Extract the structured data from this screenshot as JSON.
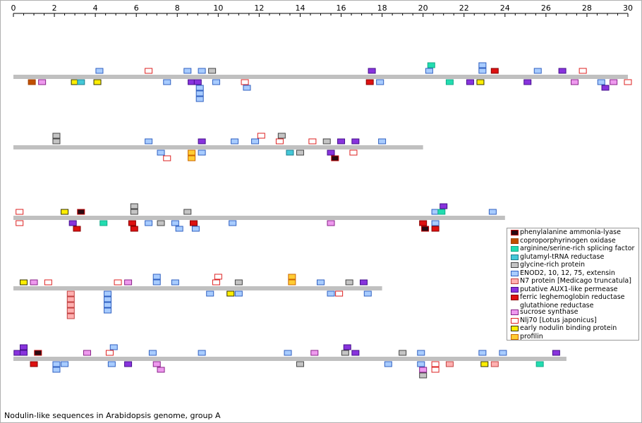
{
  "caption": "Nodulin-like sequences in Arabidopsis genome, group A",
  "chart_data": {
    "type": "scatter",
    "x_axis": {
      "min": 0,
      "max": 30,
      "ticks": [
        0,
        2,
        4,
        6,
        8,
        10,
        12,
        14,
        16,
        18,
        20,
        22,
        24,
        26,
        28,
        30
      ]
    },
    "categories": [
      {
        "key": "pal",
        "name": "phenylalanine ammonia-lyase",
        "fill": "#2a0a12",
        "stroke": "#c00000"
      },
      {
        "key": "copr",
        "name": "coproporphyrinogen oxidase",
        "fill": "#c05000",
        "stroke": "#a04000"
      },
      {
        "key": "arg",
        "name": "arginine/serine-rich splicing factor",
        "fill": "#22ddb0",
        "stroke": "#11aa88"
      },
      {
        "key": "glut",
        "name": "glutamyl-tRNA reductase",
        "fill": "#44c8d8",
        "stroke": "#1c7c8c"
      },
      {
        "key": "gly",
        "name": "glycine-rich protein",
        "fill": "#c4c4c4",
        "stroke": "#444444"
      },
      {
        "key": "enod",
        "name": "ENOD2, 10, 12, 75, extensin",
        "fill": "#a8ccff",
        "stroke": "#3060c0"
      },
      {
        "key": "n7",
        "name": "N7 protein [Medicago truncatula]",
        "fill": "#ffb0b0",
        "stroke": "#c04040"
      },
      {
        "key": "aux",
        "name": "putative AUX1-like permease",
        "fill": "#8833dd",
        "stroke": "#44108a"
      },
      {
        "key": "fer",
        "name": "ferric leghemoglobin reductase",
        "name2": "glutathione reductase",
        "fill": "#dd1111",
        "stroke": "#880000"
      },
      {
        "key": "sucr",
        "name": "sucrose synthase",
        "fill": "#ee99ee",
        "stroke": "#882288"
      },
      {
        "key": "nlj",
        "name": "Nlj70 [Lotus japonicus]",
        "fill": "#ffffff",
        "stroke": "#dd2222"
      },
      {
        "key": "enbp",
        "name": "early nodulin binding protein",
        "fill": "#ffee00",
        "stroke": "#333300"
      },
      {
        "key": "prof",
        "name": "profilin",
        "fill": "#ffcc33",
        "stroke": "#cc6600"
      }
    ],
    "chromosomes": [
      {
        "length": 30,
        "features": [
          {
            "x": 4.2,
            "level": 1,
            "cat": "enod"
          },
          {
            "x": 6.6,
            "level": 1,
            "cat": "nlj"
          },
          {
            "x": 8.5,
            "level": 1,
            "cat": "enod"
          },
          {
            "x": 9.2,
            "level": 1,
            "cat": "enod"
          },
          {
            "x": 9.7,
            "level": 1,
            "cat": "gly"
          },
          {
            "x": 17.5,
            "level": 1,
            "cat": "aux"
          },
          {
            "x": 20.3,
            "level": 1,
            "cat": "enod"
          },
          {
            "x": 20.4,
            "level": 2,
            "cat": "arg"
          },
          {
            "x": 22.9,
            "level": 1,
            "cat": "enod"
          },
          {
            "x": 22.9,
            "level": 2,
            "cat": "enod"
          },
          {
            "x": 23.5,
            "level": 1,
            "cat": "fer"
          },
          {
            "x": 25.6,
            "level": 1,
            "cat": "enod"
          },
          {
            "x": 26.8,
            "level": 1,
            "cat": "aux"
          },
          {
            "x": 27.8,
            "level": 1,
            "cat": "nlj"
          },
          {
            "x": 0.9,
            "level": -1,
            "cat": "copr"
          },
          {
            "x": 1.4,
            "level": -1,
            "cat": "sucr"
          },
          {
            "x": 3.0,
            "level": -1,
            "cat": "enbp"
          },
          {
            "x": 3.3,
            "level": -1,
            "cat": "glut"
          },
          {
            "x": 4.1,
            "level": -1,
            "cat": "enbp"
          },
          {
            "x": 7.5,
            "level": -1,
            "cat": "enod"
          },
          {
            "x": 8.7,
            "level": -1,
            "cat": "aux"
          },
          {
            "x": 9.0,
            "level": -1,
            "cat": "aux"
          },
          {
            "x": 9.1,
            "level": -2,
            "cat": "enod"
          },
          {
            "x": 9.1,
            "level": -3,
            "cat": "enod"
          },
          {
            "x": 9.1,
            "level": -4,
            "cat": "enod"
          },
          {
            "x": 9.9,
            "level": -1,
            "cat": "enod"
          },
          {
            "x": 11.3,
            "level": -1,
            "cat": "nlj"
          },
          {
            "x": 11.4,
            "level": -2,
            "cat": "enod"
          },
          {
            "x": 17.4,
            "level": -1,
            "cat": "fer"
          },
          {
            "x": 17.9,
            "level": -1,
            "cat": "enod"
          },
          {
            "x": 21.3,
            "level": -1,
            "cat": "arg"
          },
          {
            "x": 22.3,
            "level": -1,
            "cat": "aux"
          },
          {
            "x": 22.8,
            "level": -1,
            "cat": "enbp"
          },
          {
            "x": 25.1,
            "level": -1,
            "cat": "aux"
          },
          {
            "x": 27.4,
            "level": -1,
            "cat": "sucr"
          },
          {
            "x": 28.7,
            "level": -1,
            "cat": "enod"
          },
          {
            "x": 28.9,
            "level": -2,
            "cat": "aux"
          },
          {
            "x": 29.3,
            "level": -1,
            "cat": "sucr"
          },
          {
            "x": 30.0,
            "level": -1,
            "cat": "nlj"
          }
        ]
      },
      {
        "length": 20,
        "features": [
          {
            "x": 2.1,
            "level": 1,
            "cat": "gly"
          },
          {
            "x": 2.1,
            "level": 2,
            "cat": "gly"
          },
          {
            "x": 6.6,
            "level": 1,
            "cat": "enod"
          },
          {
            "x": 9.2,
            "level": 1,
            "cat": "aux"
          },
          {
            "x": 10.8,
            "level": 1,
            "cat": "enod"
          },
          {
            "x": 11.8,
            "level": 1,
            "cat": "enod"
          },
          {
            "x": 12.1,
            "level": 2,
            "cat": "nlj"
          },
          {
            "x": 13.0,
            "level": 1,
            "cat": "nlj"
          },
          {
            "x": 13.1,
            "level": 2,
            "cat": "gly"
          },
          {
            "x": 14.6,
            "level": 1,
            "cat": "nlj"
          },
          {
            "x": 15.3,
            "level": 1,
            "cat": "gly"
          },
          {
            "x": 16.0,
            "level": 1,
            "cat": "aux"
          },
          {
            "x": 16.7,
            "level": 1,
            "cat": "aux"
          },
          {
            "x": 18.0,
            "level": 1,
            "cat": "enod"
          },
          {
            "x": 7.2,
            "level": -1,
            "cat": "enod"
          },
          {
            "x": 7.5,
            "level": -2,
            "cat": "nlj"
          },
          {
            "x": 8.7,
            "level": -1,
            "cat": "prof"
          },
          {
            "x": 8.7,
            "level": -2,
            "cat": "prof"
          },
          {
            "x": 9.2,
            "level": -1,
            "cat": "enod"
          },
          {
            "x": 13.5,
            "level": -1,
            "cat": "glut"
          },
          {
            "x": 14.0,
            "level": -1,
            "cat": "gly"
          },
          {
            "x": 15.5,
            "level": -1,
            "cat": "aux"
          },
          {
            "x": 15.7,
            "level": -2,
            "cat": "pal"
          },
          {
            "x": 16.6,
            "level": -1,
            "cat": "nlj"
          }
        ]
      },
      {
        "length": 24,
        "features": [
          {
            "x": 0.3,
            "level": 1,
            "cat": "nlj"
          },
          {
            "x": 2.5,
            "level": 1,
            "cat": "enbp"
          },
          {
            "x": 3.3,
            "level": 1,
            "cat": "pal"
          },
          {
            "x": 5.9,
            "level": 1,
            "cat": "gly"
          },
          {
            "x": 5.9,
            "level": 2,
            "cat": "gly"
          },
          {
            "x": 8.5,
            "level": 1,
            "cat": "gly"
          },
          {
            "x": 20.6,
            "level": 1,
            "cat": "enod"
          },
          {
            "x": 20.9,
            "level": 1,
            "cat": "arg"
          },
          {
            "x": 21.0,
            "level": 2,
            "cat": "aux"
          },
          {
            "x": 23.4,
            "level": 1,
            "cat": "enod"
          },
          {
            "x": 0.3,
            "level": -1,
            "cat": "nlj"
          },
          {
            "x": 2.9,
            "level": -1,
            "cat": "aux"
          },
          {
            "x": 3.1,
            "level": -2,
            "cat": "fer"
          },
          {
            "x": 4.4,
            "level": -1,
            "cat": "arg"
          },
          {
            "x": 5.8,
            "level": -1,
            "cat": "fer"
          },
          {
            "x": 5.9,
            "level": -2,
            "cat": "fer"
          },
          {
            "x": 6.6,
            "level": -1,
            "cat": "enod"
          },
          {
            "x": 7.2,
            "level": -1,
            "cat": "gly"
          },
          {
            "x": 7.9,
            "level": -1,
            "cat": "enod"
          },
          {
            "x": 8.1,
            "level": -2,
            "cat": "enod"
          },
          {
            "x": 8.8,
            "level": -1,
            "cat": "fer"
          },
          {
            "x": 8.9,
            "level": -2,
            "cat": "enod"
          },
          {
            "x": 10.7,
            "level": -1,
            "cat": "enod"
          },
          {
            "x": 15.5,
            "level": -1,
            "cat": "sucr"
          },
          {
            "x": 20.0,
            "level": -1,
            "cat": "fer"
          },
          {
            "x": 20.1,
            "level": -2,
            "cat": "pal"
          },
          {
            "x": 20.6,
            "level": -1,
            "cat": "enod"
          },
          {
            "x": 20.6,
            "level": -2,
            "cat": "fer"
          }
        ]
      },
      {
        "length": 18,
        "features": [
          {
            "x": 0.5,
            "level": 1,
            "cat": "enbp"
          },
          {
            "x": 1.0,
            "level": 1,
            "cat": "sucr"
          },
          {
            "x": 1.7,
            "level": 1,
            "cat": "nlj"
          },
          {
            "x": 5.1,
            "level": 1,
            "cat": "nlj"
          },
          {
            "x": 5.6,
            "level": 1,
            "cat": "sucr"
          },
          {
            "x": 7.0,
            "level": 1,
            "cat": "enod"
          },
          {
            "x": 7.0,
            "level": 2,
            "cat": "enod"
          },
          {
            "x": 7.9,
            "level": 1,
            "cat": "enod"
          },
          {
            "x": 9.9,
            "level": 1,
            "cat": "nlj"
          },
          {
            "x": 10.0,
            "level": 2,
            "cat": "nlj"
          },
          {
            "x": 11.0,
            "level": 1,
            "cat": "gly"
          },
          {
            "x": 13.6,
            "level": 1,
            "cat": "prof"
          },
          {
            "x": 13.6,
            "level": 2,
            "cat": "prof"
          },
          {
            "x": 15.0,
            "level": 1,
            "cat": "enod"
          },
          {
            "x": 16.4,
            "level": 1,
            "cat": "gly"
          },
          {
            "x": 17.1,
            "level": 1,
            "cat": "aux"
          },
          {
            "x": 2.8,
            "level": -1,
            "cat": "n7"
          },
          {
            "x": 2.8,
            "level": -2,
            "cat": "n7"
          },
          {
            "x": 2.8,
            "level": -3,
            "cat": "n7"
          },
          {
            "x": 2.8,
            "level": -4,
            "cat": "n7"
          },
          {
            "x": 2.8,
            "level": -5,
            "cat": "n7"
          },
          {
            "x": 4.6,
            "level": -1,
            "cat": "enod"
          },
          {
            "x": 4.6,
            "level": -2,
            "cat": "enod"
          },
          {
            "x": 4.6,
            "level": -3,
            "cat": "enod"
          },
          {
            "x": 4.6,
            "level": -4,
            "cat": "enod"
          },
          {
            "x": 9.6,
            "level": -1,
            "cat": "enod"
          },
          {
            "x": 10.6,
            "level": -1,
            "cat": "enbp"
          },
          {
            "x": 11.0,
            "level": -1,
            "cat": "enod"
          },
          {
            "x": 15.5,
            "level": -1,
            "cat": "enod"
          },
          {
            "x": 15.9,
            "level": -1,
            "cat": "nlj"
          },
          {
            "x": 17.3,
            "level": -1,
            "cat": "enod"
          }
        ]
      },
      {
        "length": 27,
        "features": [
          {
            "x": 0.2,
            "level": 1,
            "cat": "aux"
          },
          {
            "x": 0.5,
            "level": 1,
            "cat": "aux"
          },
          {
            "x": 0.5,
            "level": 2,
            "cat": "aux"
          },
          {
            "x": 1.2,
            "level": 1,
            "cat": "pal"
          },
          {
            "x": 3.6,
            "level": 1,
            "cat": "sucr"
          },
          {
            "x": 4.7,
            "level": 1,
            "cat": "nlj"
          },
          {
            "x": 4.9,
            "level": 2,
            "cat": "enod"
          },
          {
            "x": 6.8,
            "level": 1,
            "cat": "enod"
          },
          {
            "x": 9.2,
            "level": 1,
            "cat": "enod"
          },
          {
            "x": 13.4,
            "level": 1,
            "cat": "enod"
          },
          {
            "x": 14.7,
            "level": 1,
            "cat": "sucr"
          },
          {
            "x": 16.2,
            "level": 1,
            "cat": "gly"
          },
          {
            "x": 16.3,
            "level": 2,
            "cat": "aux"
          },
          {
            "x": 16.7,
            "level": 1,
            "cat": "aux"
          },
          {
            "x": 19.0,
            "level": 1,
            "cat": "gly"
          },
          {
            "x": 19.9,
            "level": 1,
            "cat": "enod"
          },
          {
            "x": 22.9,
            "level": 1,
            "cat": "enod"
          },
          {
            "x": 23.9,
            "level": 1,
            "cat": "enod"
          },
          {
            "x": 26.5,
            "level": 1,
            "cat": "aux"
          },
          {
            "x": 1.0,
            "level": -1,
            "cat": "fer"
          },
          {
            "x": 2.1,
            "level": -1,
            "cat": "enod"
          },
          {
            "x": 2.1,
            "level": -2,
            "cat": "enod"
          },
          {
            "x": 2.5,
            "level": -1,
            "cat": "enod"
          },
          {
            "x": 4.8,
            "level": -1,
            "cat": "enod"
          },
          {
            "x": 5.6,
            "level": -1,
            "cat": "aux"
          },
          {
            "x": 7.0,
            "level": -1,
            "cat": "sucr"
          },
          {
            "x": 7.2,
            "level": -2,
            "cat": "sucr"
          },
          {
            "x": 14.0,
            "level": -1,
            "cat": "gly"
          },
          {
            "x": 18.3,
            "level": -1,
            "cat": "enod"
          },
          {
            "x": 19.9,
            "level": -1,
            "cat": "enod"
          },
          {
            "x": 20.0,
            "level": -2,
            "cat": "sucr"
          },
          {
            "x": 20.0,
            "level": -3,
            "cat": "gly"
          },
          {
            "x": 20.6,
            "level": -1,
            "cat": "nlj"
          },
          {
            "x": 20.6,
            "level": -2,
            "cat": "nlj"
          },
          {
            "x": 21.3,
            "level": -1,
            "cat": "n7"
          },
          {
            "x": 23.0,
            "level": -1,
            "cat": "enbp"
          },
          {
            "x": 23.5,
            "level": -1,
            "cat": "n7"
          },
          {
            "x": 25.7,
            "level": -1,
            "cat": "arg"
          }
        ]
      }
    ]
  }
}
